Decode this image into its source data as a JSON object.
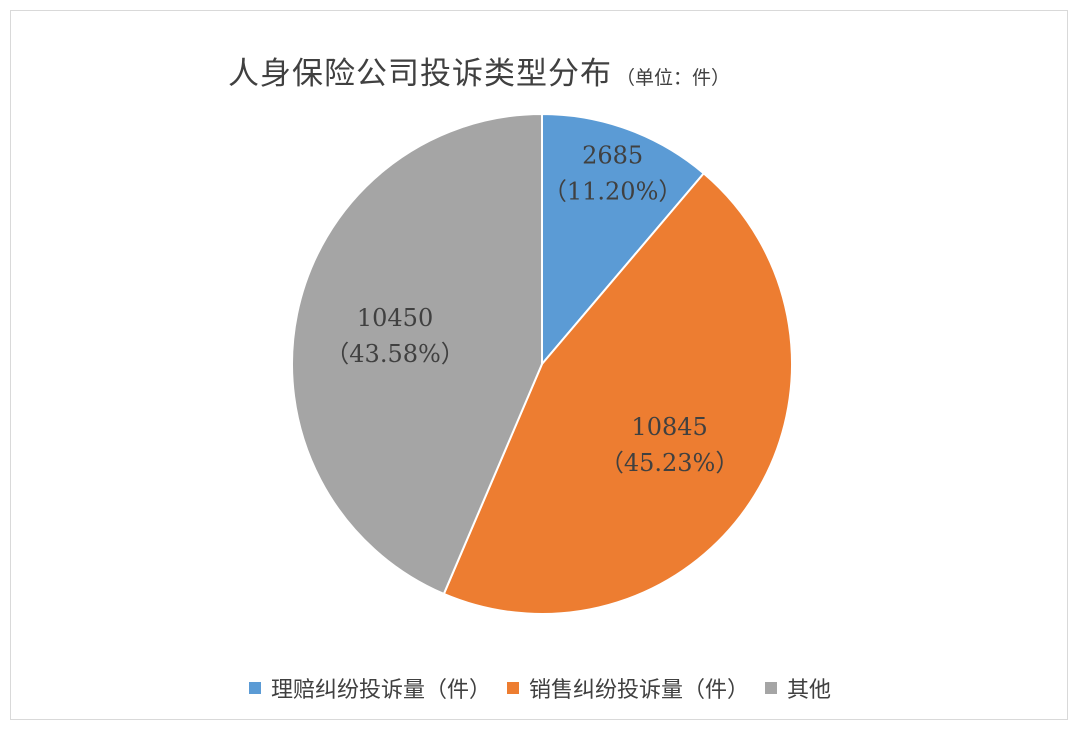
{
  "chart_data": {
    "type": "pie",
    "title": "人身保险公司投诉类型分布",
    "subtitle": "（单位：件）",
    "categories": [
      "理赔纠纷投诉量（件）",
      "销售纠纷投诉量（件）",
      "其他"
    ],
    "values": [
      2685,
      10845,
      10450
    ],
    "percent_labels": [
      "（11.20%）",
      "（45.23%）",
      "（43.58%）"
    ],
    "colors": [
      "#5B9BD5",
      "#ED7D31",
      "#A5A5A5"
    ],
    "start_angle": "12 o'clock",
    "direction": "clockwise",
    "legend_position": "bottom"
  }
}
